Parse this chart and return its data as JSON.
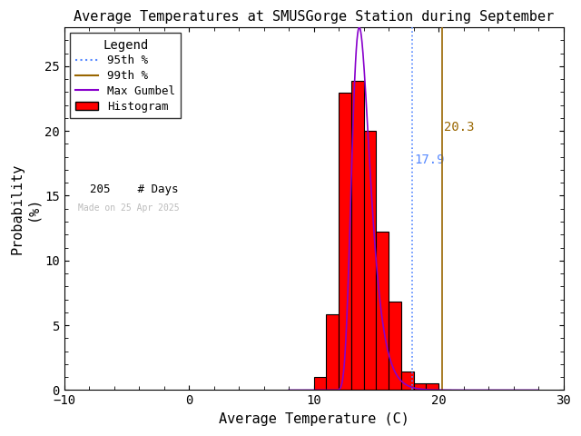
{
  "title": "Average Temperatures at SMUSGorge Station during September",
  "xlabel": "Average Temperature (C)",
  "ylabel1": "Probability",
  "ylabel2": "(%)",
  "xlim": [
    -10,
    30
  ],
  "ylim": [
    0,
    28
  ],
  "yticks": [
    0,
    5,
    10,
    15,
    20,
    25
  ],
  "xticks": [
    -10,
    0,
    10,
    20,
    30
  ],
  "bin_edges": [
    10,
    11,
    12,
    13,
    14,
    15,
    16,
    17,
    18,
    19,
    20,
    21
  ],
  "bin_heights": [
    1.0,
    5.85,
    22.93,
    23.9,
    20.0,
    12.2,
    6.83,
    1.46,
    0.49,
    0.49,
    0.0
  ],
  "hist_color": "#ff0000",
  "hist_edgecolor": "#000000",
  "gumbel_mu": 13.65,
  "gumbel_beta": 0.72,
  "gumbel_peak": 28.0,
  "pct_95": 17.9,
  "pct_99": 20.3,
  "pct_95_color": "#5588ff",
  "pct_99_color": "#996600",
  "gumbel_color": "#8800cc",
  "n_days": 205,
  "made_on": "Made on 25 Apr 2025",
  "made_on_color": "#bbbbbb",
  "background_color": "#ffffff",
  "title_fontsize": 11,
  "label_fontsize": 11,
  "tick_fontsize": 10,
  "legend_fontsize": 9,
  "legend_title_fontsize": 10
}
